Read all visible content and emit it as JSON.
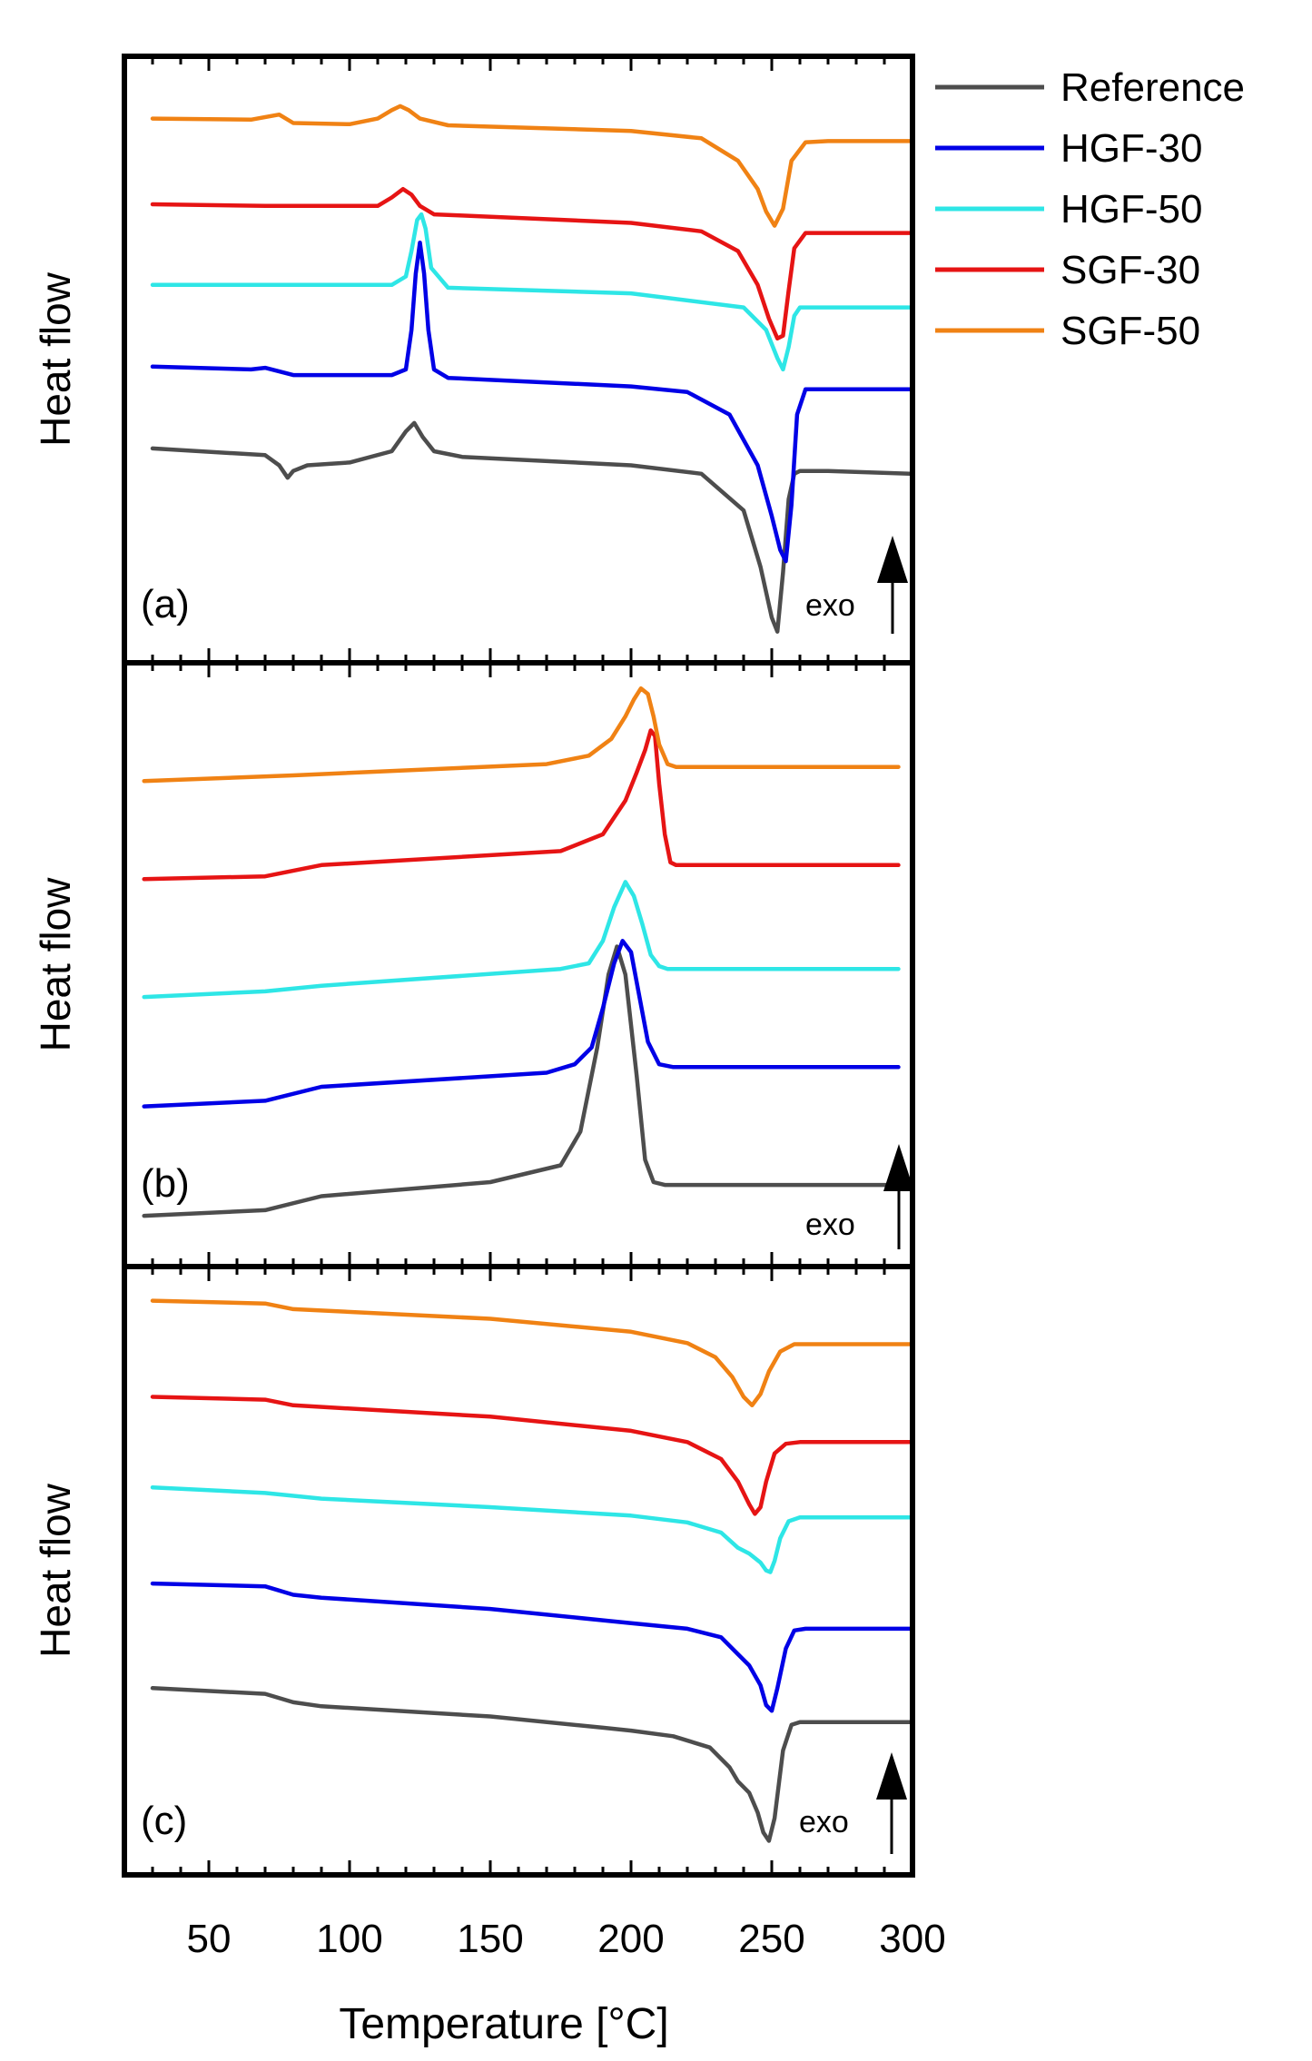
{
  "chart_data": {
    "type": "line",
    "xlabel": "Temperature [°C]",
    "xlim": [
      20,
      300
    ],
    "xticks": [
      50,
      100,
      150,
      200,
      250,
      300
    ],
    "x_minor_step": 10,
    "ylabel": "Heat flow",
    "exo_label": "exo",
    "legend": {
      "placement": "top-right outside",
      "entries": [
        "Reference",
        "HGF-30",
        "HGF-50",
        "SGF-30",
        "SGF-50"
      ]
    },
    "colors": {
      "Reference": "#4d4d4d",
      "HGF-30": "#0000e6",
      "HGF-50": "#2ee6e6",
      "SGF-30": "#e61414",
      "SGF-50": "#f08214"
    },
    "panels": [
      {
        "label": "(a)",
        "ylim": [
          0,
          100
        ],
        "series": [
          {
            "name": "Reference",
            "x": [
              30,
              70,
              75,
              78,
              80,
              85,
              100,
              115,
              120,
              123,
              126,
              130,
              140,
              200,
              225,
              240,
              246,
              250,
              252,
              254,
              256,
              258,
              260,
              270,
              299
            ],
            "y": [
              34,
              32.8,
              31,
              28.8,
              30,
              31,
              31.5,
              33.5,
              37,
              38.5,
              36,
              33.5,
              32.5,
              31,
              29.5,
              23,
              13,
              4,
              1.5,
              12,
              25,
              29.5,
              30,
              30,
              29.5
            ]
          },
          {
            "name": "HGF-30",
            "x": [
              30,
              65,
              70,
              80,
              115,
              120,
              122,
              123.5,
              125,
              126.5,
              128,
              130,
              135,
              200,
              220,
              235,
              245,
              250,
              253,
              255,
              257,
              259,
              262,
              270,
              299
            ],
            "y": [
              48.5,
              48,
              48.3,
              47,
              47,
              48,
              55,
              65,
              70.5,
              65,
              55,
              48,
              46.5,
              45,
              44,
              40,
              31,
              22,
              16,
              14,
              24,
              40,
              44.5,
              44.5,
              44.5
            ]
          },
          {
            "name": "HGF-50",
            "x": [
              30,
              100,
              115,
              120,
              122,
              124,
              125.5,
              127,
              129,
              135,
              200,
              240,
              248,
              252,
              254,
              256,
              258,
              260,
              270,
              299
            ],
            "y": [
              63,
              63,
              63,
              64.5,
              69,
              74.5,
              75.5,
              73,
              66,
              62.5,
              61.5,
              59,
              55,
              50,
              48,
              52,
              57.5,
              59,
              59,
              59
            ]
          },
          {
            "name": "SGF-30",
            "x": [
              30,
              70,
              110,
              115,
              119,
              122,
              125,
              130,
              140,
              200,
              225,
              238,
              245,
              249,
              252,
              254,
              256,
              258,
              262,
              270,
              299
            ],
            "y": [
              77.3,
              77,
              77,
              78.5,
              80,
              79,
              77,
              75.5,
              75.3,
              74,
              72.5,
              69,
              63,
              57,
              53.5,
              54,
              62,
              69.5,
              72.2,
              72.2,
              72.2
            ]
          },
          {
            "name": "SGF-50",
            "x": [
              30,
              65,
              75,
              80,
              100,
              110,
              115,
              118,
              121,
              125,
              135,
              200,
              225,
              238,
              245,
              248,
              251,
              254,
              257,
              262,
              270,
              299
            ],
            "y": [
              92.5,
              92.3,
              93.2,
              91.7,
              91.5,
              92.5,
              94,
              94.7,
              94,
              92.5,
              91.3,
              90.3,
              89,
              85,
              80,
              76,
              73.5,
              76.5,
              85,
              88.3,
              88.5,
              88.5
            ]
          }
        ]
      },
      {
        "label": "(b)",
        "ylim": [
          0,
          100
        ],
        "series": [
          {
            "name": "Reference",
            "x": [
              27,
              70,
              90,
              150,
              175,
              182,
              188,
              192,
              195,
              198,
              202,
              205,
              208,
              212,
              240,
              295
            ],
            "y": [
              5,
              6,
              8.5,
              11,
              14,
              20,
              35,
              48,
              53,
              48,
              30,
              15,
              11,
              10.5,
              10.5,
              10.5
            ]
          },
          {
            "name": "HGF-30",
            "x": [
              27,
              70,
              90,
              170,
              180,
              186,
              190,
              194,
              197,
              200,
              203,
              206,
              210,
              215,
              250,
              295
            ],
            "y": [
              24.5,
              25.5,
              28,
              30.5,
              32,
              35,
              42,
              50,
              54,
              52,
              44,
              36,
              32,
              31.5,
              31.5,
              31.5
            ]
          },
          {
            "name": "HGF-50",
            "x": [
              27,
              70,
              90,
              175,
              185,
              190,
              194,
              198,
              201,
              204,
              207,
              210,
              213,
              250,
              295
            ],
            "y": [
              44,
              45,
              46,
              49,
              50,
              54,
              60,
              64.5,
              62,
              57,
              51.5,
              49.5,
              49,
              49,
              49
            ]
          },
          {
            "name": "SGF-30",
            "x": [
              27,
              70,
              90,
              175,
              190,
              198,
              202,
              205,
              207,
              208.5,
              210,
              212,
              214,
              216,
              230,
              295
            ],
            "y": [
              65,
              65.5,
              67.5,
              70,
              73,
              79,
              84,
              88,
              91.5,
              90.5,
              82,
              73,
              68,
              67.5,
              67.5,
              67.5
            ]
          },
          {
            "name": "SGF-50",
            "x": [
              27,
              80,
              170,
              185,
              193,
              198,
              201,
              203.5,
              206,
              208,
              210,
              213,
              216,
              240,
              295
            ],
            "y": [
              82.5,
              83.5,
              85.5,
              87,
              90,
              94,
              97,
              99,
              98,
              94,
              89,
              85.5,
              85,
              85,
              85
            ]
          }
        ]
      },
      {
        "label": "(c)",
        "ylim": [
          0,
          100
        ],
        "series": [
          {
            "name": "Reference",
            "x": [
              30,
              70,
              80,
              90,
              150,
              190,
              200,
              215,
              228,
              235,
              238,
              242,
              245,
              247,
              249,
              251,
              254,
              257,
              260,
              299
            ],
            "y": [
              29,
              28,
              26.5,
              25.8,
              24,
              22,
              21.5,
              20.5,
              18.5,
              15,
              12.5,
              10.5,
              7,
              3.5,
              2,
              6,
              18,
              22.5,
              23,
              23
            ]
          },
          {
            "name": "HGF-30",
            "x": [
              30,
              70,
              80,
              90,
              150,
              190,
              200,
              220,
              232,
              238,
              242,
              246,
              248,
              250,
              252,
              255,
              258,
              262,
              299
            ],
            "y": [
              47.5,
              47,
              45.5,
              45,
              43,
              41,
              40.5,
              39.5,
              38,
              35,
              33,
              29.5,
              26,
              25,
              29,
              36,
              39.2,
              39.5,
              39.5
            ]
          },
          {
            "name": "HGF-50",
            "x": [
              30,
              70,
              90,
              150,
              200,
              220,
              232,
              238,
              242,
              246,
              248,
              249.5,
              251,
              253,
              256,
              260,
              299
            ],
            "y": [
              64.5,
              63.5,
              62.5,
              61,
              59.5,
              58.3,
              56.5,
              53.8,
              52.8,
              51.2,
              49.8,
              49.5,
              51.5,
              55.5,
              58.5,
              59.2,
              59.2
            ]
          },
          {
            "name": "SGF-30",
            "x": [
              30,
              70,
              80,
              150,
              200,
              220,
              232,
              238,
              242,
              244,
              246,
              248,
              251,
              255,
              260,
              299
            ],
            "y": [
              80.5,
              80,
              79,
              77,
              74.5,
              72.5,
              69.5,
              65.5,
              61.5,
              59.8,
              61,
              65.5,
              70.5,
              72.2,
              72.5,
              72.5
            ]
          },
          {
            "name": "SGF-50",
            "x": [
              30,
              70,
              80,
              150,
              200,
              220,
              230,
              236,
              240,
              243,
              246,
              249,
              253,
              258,
              299
            ],
            "y": [
              97.5,
              97,
              96,
              94.3,
              92,
              90,
              87.5,
              84,
              80.5,
              79,
              81,
              85,
              88.5,
              89.8,
              89.8
            ]
          }
        ]
      }
    ]
  }
}
